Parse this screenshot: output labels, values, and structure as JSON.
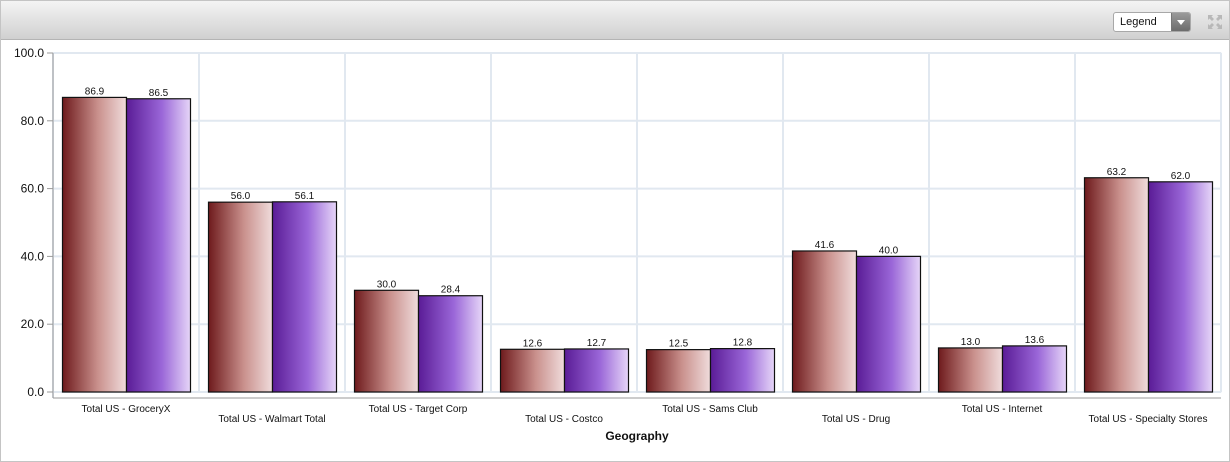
{
  "toolbar": {
    "legend_label": "Legend",
    "icons": [
      "chevron-down-icon",
      "expand-icon"
    ]
  },
  "chart_data": {
    "type": "bar",
    "title": "",
    "xlabel": "Geography",
    "ylabel": "",
    "ylim": [
      0,
      100
    ],
    "yticks": [
      "0.0",
      "20.0",
      "40.0",
      "60.0",
      "80.0",
      "100.0"
    ],
    "grid": true,
    "categories": [
      "Total US - GroceryX",
      "Total US - Walmart Total",
      "Total US - Target Corp",
      "Total US - Costco",
      "Total US - Sams Club",
      "Total US - Drug",
      "Total US - Internet",
      "Total US - Specialty Stores"
    ],
    "series": [
      {
        "values": [
          86.9,
          56.0,
          30.0,
          12.6,
          12.5,
          41.6,
          13.0,
          63.2
        ],
        "color": "#7a1e22"
      },
      {
        "values": [
          86.5,
          56.1,
          28.4,
          12.7,
          12.8,
          40.0,
          13.6,
          62.0
        ],
        "color": "#6a28a8"
      }
    ]
  }
}
